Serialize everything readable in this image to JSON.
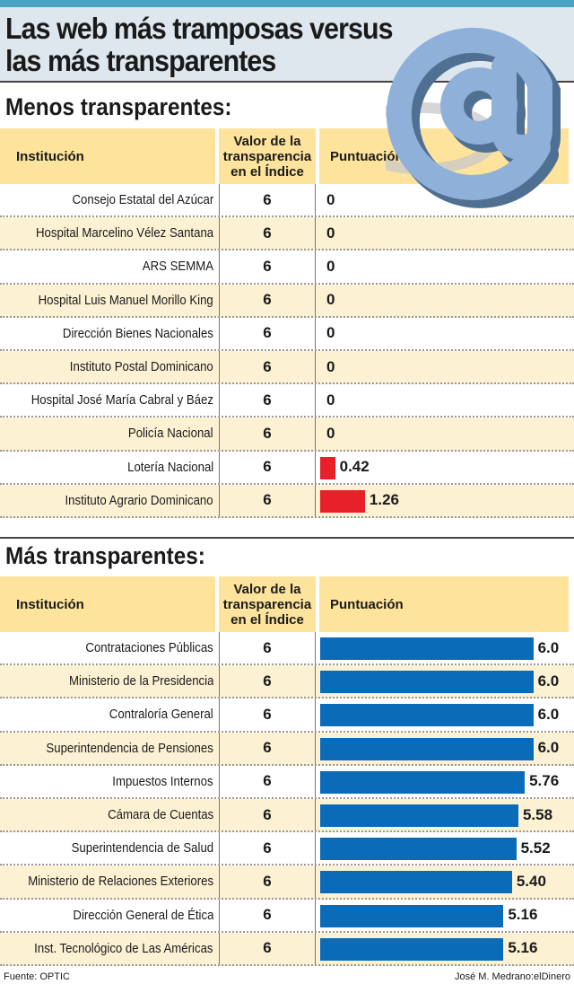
{
  "header": {
    "title_line1": "Las web más tramposas versus",
    "title_line2": "las más transparentes"
  },
  "colors": {
    "low_bar": "#e8202a",
    "high_bar": "#0a6bb8",
    "header_bg": "#fde39c",
    "alt_row": "#fdf1d4"
  },
  "chart_data": [
    {
      "type": "table",
      "title": "Menos transparentes:",
      "columns": [
        "Institución",
        "Valor de la transparencia en el Índice",
        "Puntuación"
      ],
      "rows": [
        {
          "name": "Consejo Estatal del Azúcar",
          "valor": "6",
          "score": 0,
          "label": "0"
        },
        {
          "name": "Hospital Marcelino Vélez Santana",
          "valor": "6",
          "score": 0,
          "label": "0"
        },
        {
          "name": "ARS SEMMA",
          "valor": "6",
          "score": 0,
          "label": "0"
        },
        {
          "name": "Hospital Luis Manuel Morillo King",
          "valor": "6",
          "score": 0,
          "label": "0"
        },
        {
          "name": "Dirección Bienes Nacionales",
          "valor": "6",
          "score": 0,
          "label": "0"
        },
        {
          "name": "Instituto Postal Dominicano",
          "valor": "6",
          "score": 0,
          "label": "0"
        },
        {
          "name": "Hospital José María Cabral y Báez",
          "valor": "6",
          "score": 0,
          "label": "0"
        },
        {
          "name": "Policía Nacional",
          "valor": "6",
          "score": 0,
          "label": "0"
        },
        {
          "name": "Lotería Nacional",
          "valor": "6",
          "score": 0.42,
          "label": "0.42"
        },
        {
          "name": "Instituto Agrario Dominicano",
          "valor": "6",
          "score": 1.26,
          "label": "1.26"
        }
      ]
    },
    {
      "type": "table",
      "title": "Más transparentes:",
      "columns": [
        "Institución",
        "Valor de la transparencia en el Índice",
        "Puntuación"
      ],
      "rows": [
        {
          "name": "Contrataciones Públicas",
          "valor": "6",
          "score": 6.0,
          "label": "6.0"
        },
        {
          "name": "Ministerio de la Presidencia",
          "valor": "6",
          "score": 6.0,
          "label": "6.0"
        },
        {
          "name": "Contraloría General",
          "valor": "6",
          "score": 6.0,
          "label": "6.0"
        },
        {
          "name": "Superintendencia de Pensiones",
          "valor": "6",
          "score": 6.0,
          "label": "6.0"
        },
        {
          "name": "Impuestos Internos",
          "valor": "6",
          "score": 5.76,
          "label": "5.76"
        },
        {
          "name": "Cámara de Cuentas",
          "valor": "6",
          "score": 5.58,
          "label": "5.58"
        },
        {
          "name": "Superintendencia de Salud",
          "valor": "6",
          "score": 5.52,
          "label": "5.52"
        },
        {
          "name": "Ministerio de Relaciones Exteriores",
          "valor": "6",
          "score": 5.4,
          "label": "5.40"
        },
        {
          "name": "Dirección General de Ética",
          "valor": "6",
          "score": 5.16,
          "label": "5.16"
        },
        {
          "name": "Inst. Tecnológico de Las Américas",
          "valor": "6",
          "score": 5.16,
          "label": "5.16"
        }
      ]
    }
  ],
  "footer": {
    "source": "Fuente: OPTIC",
    "credit": "José M. Medrano:elDinero"
  }
}
